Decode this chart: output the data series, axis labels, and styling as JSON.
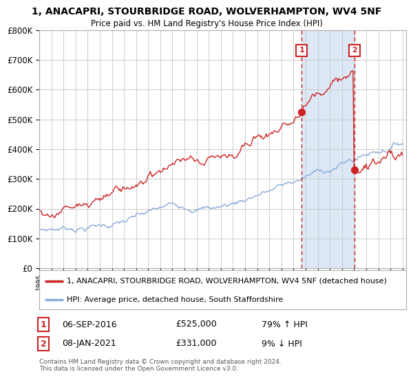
{
  "title": "1, ANACAPRI, STOURBRIDGE ROAD, WOLVERHAMPTON, WV4 5NF",
  "subtitle": "Price paid vs. HM Land Registry's House Price Index (HPI)",
  "legend_line1": "1, ANACAPRI, STOURBRIDGE ROAD, WOLVERHAMPTON, WV4 5NF (detached house)",
  "legend_line2": "HPI: Average price, detached house, South Staffordshire",
  "annotation1_date": "06-SEP-2016",
  "annotation1_price": "£525,000",
  "annotation1_hpi": "79% ↑ HPI",
  "annotation2_date": "08-JAN-2021",
  "annotation2_price": "£331,000",
  "annotation2_hpi": "9% ↓ HPI",
  "footer": "Contains HM Land Registry data © Crown copyright and database right 2024.\nThis data is licensed under the Open Government Licence v3.0.",
  "y_max": 800000,
  "sale1_year": 2016.67,
  "sale1_price": 525000,
  "sale2_year": 2021.03,
  "sale2_price": 331000,
  "highlight_color": "#dce8f5",
  "red_line_color": "#cc2222",
  "blue_line_color": "#88aadd",
  "dashed_line_color": "#cc2222",
  "background_color": "#ffffff",
  "grid_color": "#cccccc"
}
